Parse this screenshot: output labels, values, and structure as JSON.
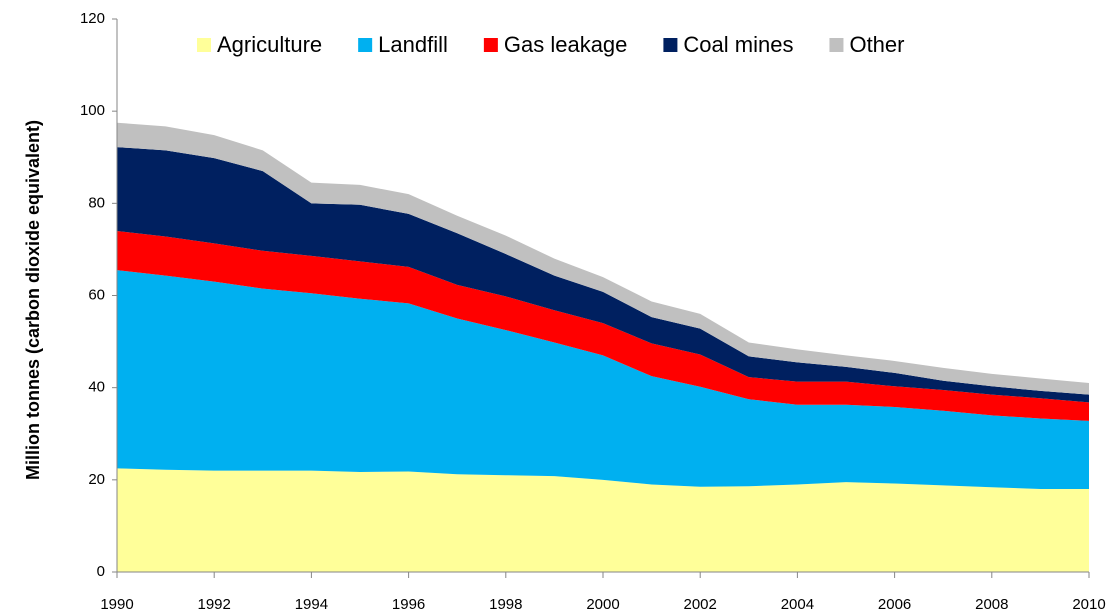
{
  "chart_data": {
    "type": "stacked_area",
    "y_label": "Million tonnes (carbon dioxide equivalent)",
    "x": [
      1990,
      1991,
      1992,
      1993,
      1994,
      1995,
      1996,
      1997,
      1998,
      1999,
      2000,
      2001,
      2002,
      2003,
      2004,
      2005,
      2006,
      2007,
      2008,
      2009,
      2010
    ],
    "series": [
      {
        "name": "Agriculture",
        "color": "#ffff99",
        "values": [
          22.5,
          22.2,
          22,
          22,
          22,
          21.7,
          21.8,
          21.2,
          21,
          20.8,
          20,
          19,
          18.5,
          18.6,
          19,
          19.5,
          19.2,
          18.8,
          18.4,
          18,
          18
        ]
      },
      {
        "name": "Landfill",
        "color": "#00b0f0",
        "values": [
          43,
          42.1,
          41,
          39.5,
          38.5,
          37.6,
          36.5,
          33.8,
          31.5,
          29,
          27,
          23.5,
          21.7,
          18.9,
          17.3,
          16.8,
          16.6,
          16.2,
          15.6,
          15.3,
          14.8
        ]
      },
      {
        "name": "Gas leakage",
        "color": "#ff0000",
        "values": [
          8.5,
          8.5,
          8.3,
          8.2,
          8.1,
          8.1,
          7.9,
          7.3,
          7.3,
          7,
          7,
          7.1,
          7,
          4.8,
          5,
          5,
          4.5,
          4.5,
          4.5,
          4.4,
          4
        ]
      },
      {
        "name": "Coal mines",
        "color": "#002060",
        "values": [
          18.2,
          18.7,
          18.5,
          17.3,
          11.4,
          12.3,
          11.5,
          11.2,
          9.2,
          7.5,
          6.8,
          5.7,
          5.6,
          4.5,
          4.2,
          3.2,
          2.9,
          2,
          1.8,
          1.6,
          1.7
        ]
      },
      {
        "name": "Other",
        "color": "#c0c0c0",
        "values": [
          5.3,
          5.2,
          5,
          4.5,
          4.5,
          4.3,
          4.3,
          3.8,
          4,
          3.7,
          3.2,
          3.4,
          3.2,
          3,
          2.8,
          2.5,
          2.6,
          2.8,
          2.7,
          2.7,
          2.5
        ]
      }
    ],
    "xlim": [
      1990,
      2010
    ],
    "xticks": [
      1990,
      1992,
      1994,
      1996,
      1998,
      2000,
      2002,
      2004,
      2006,
      2008,
      2010
    ],
    "ylim": [
      0,
      120
    ],
    "yticks": [
      0,
      20,
      40,
      60,
      80,
      100,
      120
    ],
    "grid": false,
    "legend": "top"
  }
}
